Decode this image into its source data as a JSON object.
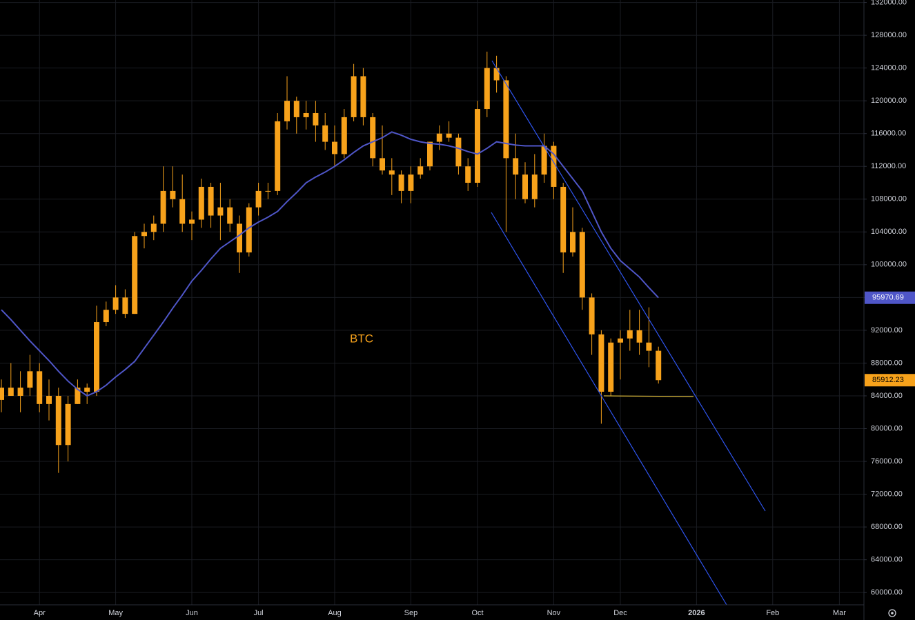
{
  "chart_data": {
    "type": "candlestick",
    "annotation": "BTC",
    "categories": [
      null,
      null,
      null,
      null,
      "Apr",
      null,
      null,
      null,
      null,
      null,
      null,
      null,
      "May",
      null,
      null,
      null,
      null,
      null,
      null,
      null,
      "Jun",
      null,
      null,
      null,
      null,
      null,
      null,
      "Jul",
      null,
      null,
      null,
      null,
      null,
      null,
      null,
      "Aug",
      null,
      null,
      null,
      null,
      null,
      null,
      null,
      "Sep",
      null,
      null,
      null,
      null,
      null,
      null,
      "Oct",
      null,
      null,
      null,
      null,
      null,
      null,
      null,
      "Nov",
      null,
      null,
      null,
      null,
      null,
      null,
      "Dec",
      null,
      null,
      null,
      null,
      null,
      null,
      null,
      "2026",
      null,
      null,
      null,
      null,
      null,
      null,
      null,
      "Feb",
      null,
      null,
      null,
      null,
      null,
      null,
      "Mar",
      null
    ],
    "color": "#f7a21b",
    "open": [
      83500,
      85000,
      84000,
      85000,
      87000,
      83000,
      84000,
      78000,
      83000,
      85000,
      84500,
      93000,
      94500,
      96000,
      94000,
      103500,
      104000,
      105000,
      109000,
      108000,
      105000,
      105500,
      109500,
      106000,
      107000,
      105000,
      101500,
      107000,
      109000,
      109000,
      117500,
      120000,
      118000,
      118500,
      117000,
      115000,
      113500,
      118000,
      123000,
      118000,
      113000,
      111500,
      111000,
      109000,
      111000,
      112000,
      115000,
      116000,
      115500,
      112000,
      110000,
      119000,
      124000,
      122500,
      113000,
      111000,
      108000,
      111000,
      114500,
      109500,
      101500,
      104000,
      96000,
      91500,
      84500,
      90500,
      91000,
      92000,
      90500,
      89500,
      null,
      null,
      null,
      null,
      null,
      null,
      null,
      null,
      null,
      null,
      null,
      null,
      null,
      null,
      null,
      null,
      null,
      null,
      null,
      null
    ],
    "high": [
      86000,
      88000,
      87000,
      89000,
      88000,
      86000,
      85000,
      84000,
      86000,
      85500,
      95000,
      95500,
      97500,
      97000,
      104000,
      105000,
      106000,
      112000,
      112000,
      111000,
      106500,
      110500,
      110000,
      110000,
      108000,
      106000,
      107500,
      110000,
      110000,
      118500,
      123000,
      120500,
      120000,
      120000,
      118500,
      117000,
      119000,
      124500,
      124000,
      118500,
      117000,
      113000,
      111500,
      112000,
      113000,
      115000,
      117000,
      117500,
      116000,
      113000,
      120000,
      126000,
      125500,
      123000,
      116000,
      112500,
      113500,
      116000,
      115000,
      110000,
      107000,
      104500,
      96500,
      92000,
      91000,
      92000,
      94500,
      94500,
      94800,
      90000,
      null,
      null,
      null,
      null,
      null,
      null,
      null,
      null,
      null,
      null,
      null,
      null,
      null,
      null,
      null,
      null,
      null,
      null,
      null,
      null
    ],
    "low": [
      82000,
      84000,
      82000,
      84000,
      82000,
      81000,
      74600,
      76000,
      83000,
      83000,
      84000,
      92500,
      94000,
      93500,
      94000,
      102000,
      103000,
      104000,
      107000,
      104000,
      103000,
      104500,
      104500,
      103000,
      104000,
      99000,
      101000,
      106000,
      108000,
      108500,
      116500,
      116000,
      116500,
      115000,
      114000,
      112000,
      113000,
      117500,
      117000,
      112000,
      111000,
      108500,
      107500,
      107500,
      110500,
      111500,
      114000,
      115000,
      111000,
      109000,
      109500,
      118000,
      121000,
      104000,
      108000,
      107500,
      107000,
      110000,
      108000,
      99000,
      101000,
      94500,
      89000,
      80600,
      84000,
      86000,
      89500,
      89000,
      87500,
      85500,
      null,
      null,
      null,
      null,
      null,
      null,
      null,
      null,
      null,
      null,
      null,
      null,
      null,
      null,
      null,
      null,
      null,
      null,
      null,
      null
    ],
    "close": [
      85000,
      84000,
      85000,
      87000,
      83000,
      84000,
      78000,
      83000,
      85000,
      84500,
      93000,
      94500,
      96000,
      94000,
      103500,
      104000,
      105000,
      109000,
      108000,
      105000,
      105500,
      109500,
      106000,
      107000,
      105000,
      101500,
      107000,
      109000,
      109000,
      117500,
      120000,
      118000,
      118500,
      117000,
      115000,
      113500,
      118000,
      123000,
      118000,
      113000,
      111500,
      111000,
      109000,
      111000,
      112000,
      115000,
      116000,
      115500,
      112000,
      110000,
      119000,
      124000,
      122500,
      113000,
      111000,
      108000,
      111000,
      114500,
      109500,
      101500,
      104000,
      96000,
      91500,
      84500,
      90500,
      91000,
      92000,
      90500,
      89500,
      85912.23,
      null,
      null,
      null,
      null,
      null,
      null,
      null,
      null,
      null,
      null,
      null,
      null,
      null,
      null,
      null,
      null,
      null,
      null,
      null,
      null
    ],
    "moving_average": {
      "color": "#4f56c8",
      "values": [
        94500,
        93300,
        92000,
        90700,
        89500,
        88300,
        87000,
        85800,
        84800,
        84000,
        84500,
        85300,
        86300,
        87200,
        88200,
        89800,
        91400,
        93000,
        94700,
        96300,
        98000,
        99300,
        100700,
        102000,
        102800,
        103600,
        104500,
        105200,
        105800,
        106500,
        107700,
        108800,
        110000,
        110700,
        111300,
        112000,
        112800,
        113700,
        114500,
        115000,
        115500,
        116200,
        115800,
        115300,
        115000,
        114800,
        114700,
        114500,
        114200,
        113800,
        113500,
        114200,
        115000,
        114800,
        114600,
        114500,
        114500,
        114500,
        113500,
        112000,
        110500,
        109000,
        106500,
        104000,
        102000,
        100500,
        99500,
        98500,
        97200,
        95970.69,
        null,
        null,
        null,
        null,
        null,
        null,
        null,
        null,
        null,
        null,
        null,
        null,
        null,
        null,
        null,
        null,
        null,
        null,
        null,
        null
      ]
    },
    "ylim": [
      58500,
      132300
    ],
    "yticks": [
      {
        "value": 60000,
        "label": "60000.00"
      },
      {
        "value": 64000,
        "label": "64000.00"
      },
      {
        "value": 68000,
        "label": "68000.00"
      },
      {
        "value": 72000,
        "label": "72000.00"
      },
      {
        "value": 76000,
        "label": "76000.00"
      },
      {
        "value": 80000,
        "label": "80000.00"
      },
      {
        "value": 84000,
        "label": "84000.00"
      },
      {
        "value": 88000,
        "label": "88000.00"
      },
      {
        "value": 92000,
        "label": "92000.00"
      },
      {
        "value": 96000,
        "label": "96000.00"
      },
      {
        "value": 100000,
        "label": "100000.00"
      },
      {
        "value": 104000,
        "label": "104000.00"
      },
      {
        "value": 108000,
        "label": "108000.00"
      },
      {
        "value": 112000,
        "label": "112000.00"
      },
      {
        "value": 116000,
        "label": "116000.00"
      },
      {
        "value": 120000,
        "label": "120000.00"
      },
      {
        "value": 124000,
        "label": "124000.00"
      },
      {
        "value": 128000,
        "label": "128000.00"
      },
      {
        "value": 132000,
        "label": "132000.00"
      }
    ],
    "grid": true
  }
}
